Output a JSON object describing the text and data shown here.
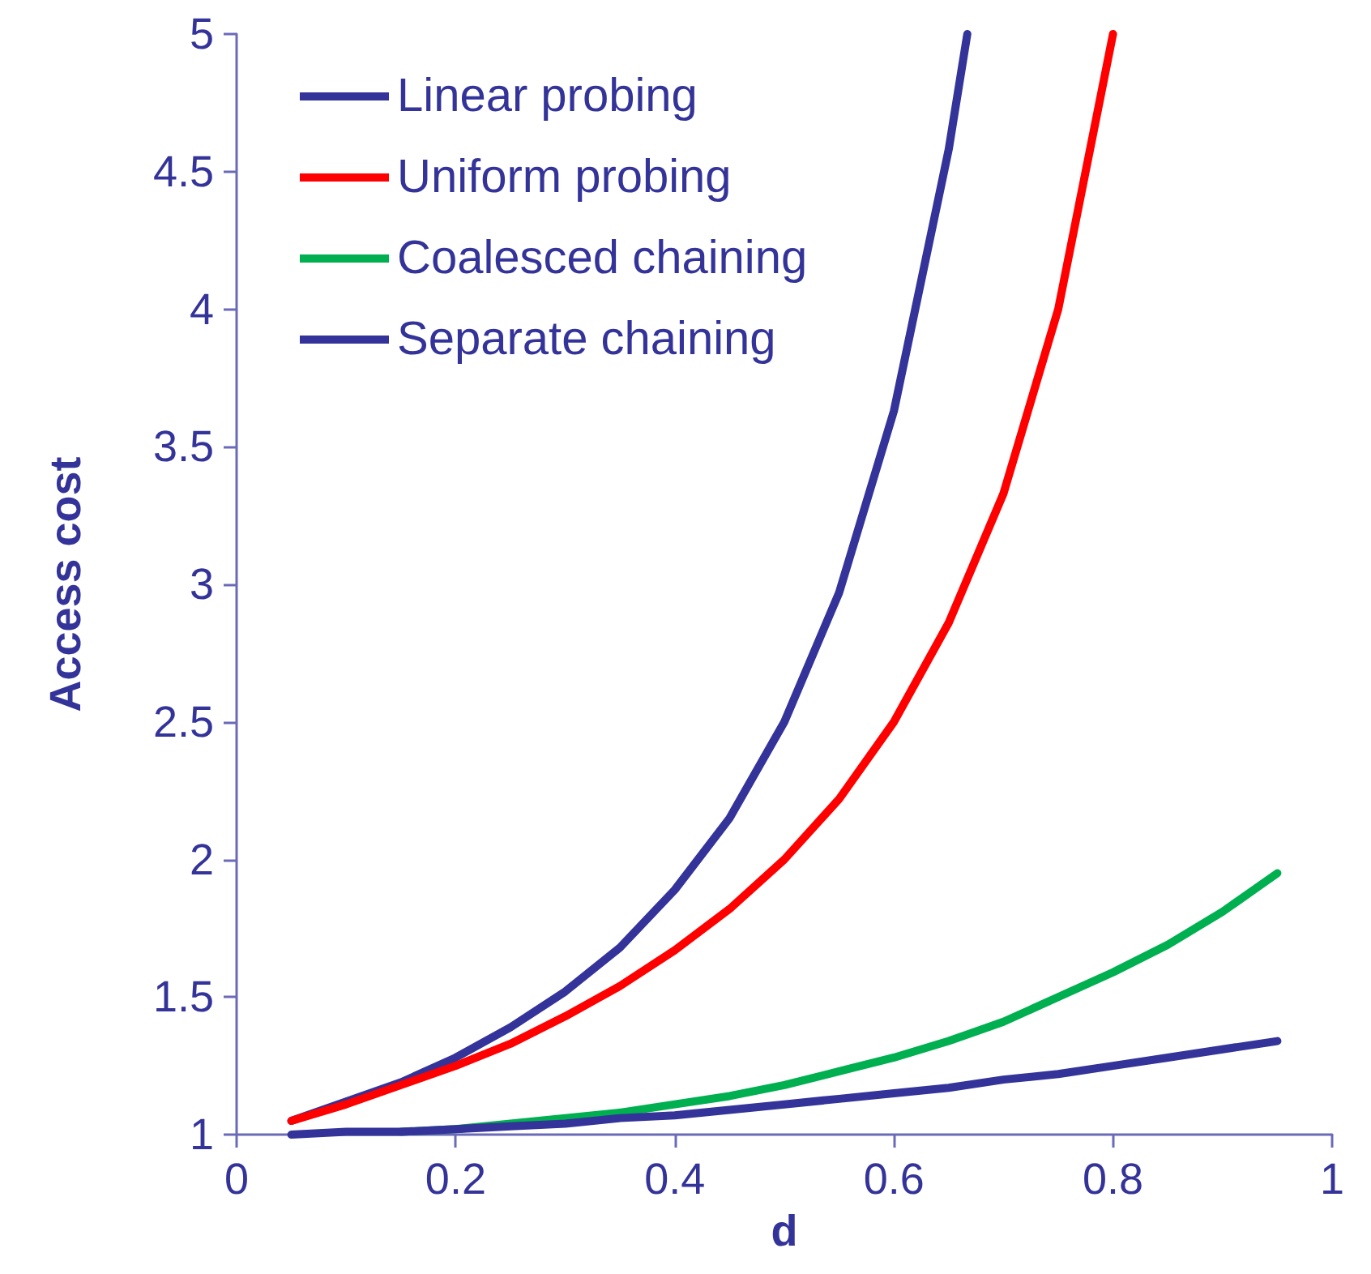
{
  "chart_data": {
    "type": "line",
    "xlabel": "d",
    "ylabel": "Access cost",
    "xlim": [
      0,
      1
    ],
    "xticks": [
      0,
      0.2,
      0.4,
      0.6,
      0.8,
      1
    ],
    "ylim": [
      1,
      5
    ],
    "yticks": [
      1,
      1.5,
      2,
      2.5,
      3,
      3.5,
      4,
      4.5,
      5
    ],
    "grid": false,
    "legend": "top left",
    "marker": "none",
    "line_style": "solid",
    "series": [
      {
        "name": "Linear probing",
        "color": "#333399",
        "x": [
          0.05,
          0.1,
          0.15,
          0.2,
          0.25,
          0.3,
          0.35,
          0.4,
          0.45,
          0.5,
          0.55,
          0.6,
          0.65,
          0.667
        ],
        "values": [
          1.05,
          1.12,
          1.19,
          1.28,
          1.39,
          1.52,
          1.68,
          1.89,
          2.15,
          2.5,
          2.97,
          3.63,
          4.58,
          5
        ]
      },
      {
        "name": "Uniform probing",
        "color": "#ff0000",
        "x": [
          0.05,
          0.1,
          0.15,
          0.2,
          0.25,
          0.3,
          0.35,
          0.4,
          0.45,
          0.5,
          0.55,
          0.6,
          0.65,
          0.7,
          0.75,
          0.8
        ],
        "values": [
          1.05,
          1.11,
          1.18,
          1.25,
          1.33,
          1.43,
          1.54,
          1.67,
          1.82,
          2,
          2.22,
          2.5,
          2.86,
          3.33,
          4,
          5
        ]
      },
      {
        "name": "Coalesced chaining",
        "color": "#00b050",
        "x": [
          0.15,
          0.2,
          0.25,
          0.3,
          0.35,
          0.4,
          0.45,
          0.5,
          0.55,
          0.6,
          0.65,
          0.7,
          0.75,
          0.8,
          0.85,
          0.9,
          0.95
        ],
        "values": [
          1.01,
          1.02,
          1.04,
          1.06,
          1.08,
          1.11,
          1.14,
          1.18,
          1.23,
          1.28,
          1.34,
          1.41,
          1.5,
          1.59,
          1.69,
          1.81,
          1.95
        ]
      },
      {
        "name": "Separate chaining",
        "color": "#333399",
        "x": [
          0.05,
          0.1,
          0.15,
          0.2,
          0.25,
          0.3,
          0.35,
          0.4,
          0.45,
          0.5,
          0.55,
          0.6,
          0.65,
          0.7,
          0.75,
          0.8,
          0.85,
          0.9,
          0.95
        ],
        "values": [
          1,
          1.01,
          1.01,
          1.02,
          1.03,
          1.04,
          1.06,
          1.07,
          1.09,
          1.11,
          1.13,
          1.15,
          1.17,
          1.2,
          1.22,
          1.25,
          1.28,
          1.31,
          1.34
        ]
      }
    ]
  }
}
